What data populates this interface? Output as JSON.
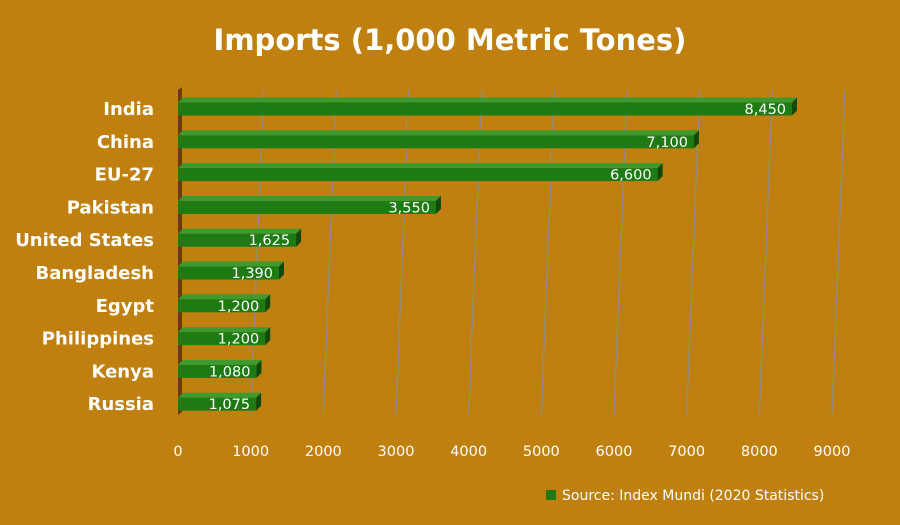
{
  "colors": {
    "background": "#C0800F",
    "bar": "#1E7A12",
    "bar_dark": "#0F4A08",
    "bar_top": "#3E9A2E",
    "text": "#FFFFFF",
    "grid": "#8C8C8C",
    "axis_wall": "#6B3A12"
  },
  "chart_data": {
    "type": "bar",
    "orientation": "horizontal",
    "title": "Imports (1,000 Metric Tones)",
    "xlabel": "",
    "ylabel": "",
    "xlim": [
      0,
      9000
    ],
    "x_ticks": [
      0,
      1000,
      2000,
      3000,
      4000,
      5000,
      6000,
      7000,
      8000,
      9000
    ],
    "grid": true,
    "legend_position": "bottom-right",
    "categories": [
      "India",
      "China",
      "EU-27",
      "Pakistan",
      "United States",
      "Bangladesh",
      "Egypt",
      "Philippines",
      "Kenya",
      "Russia"
    ],
    "series": [
      {
        "name": "Source: Index Mundi (2020 Statistics)",
        "values": [
          8450,
          7100,
          6600,
          3550,
          1625,
          1390,
          1200,
          1200,
          1080,
          1075
        ],
        "labels": [
          "8,450",
          "7,100",
          "6,600",
          "3,550",
          "1,625",
          "1,390",
          "1,200",
          "1,200",
          "1,080",
          "1,075"
        ]
      }
    ]
  }
}
